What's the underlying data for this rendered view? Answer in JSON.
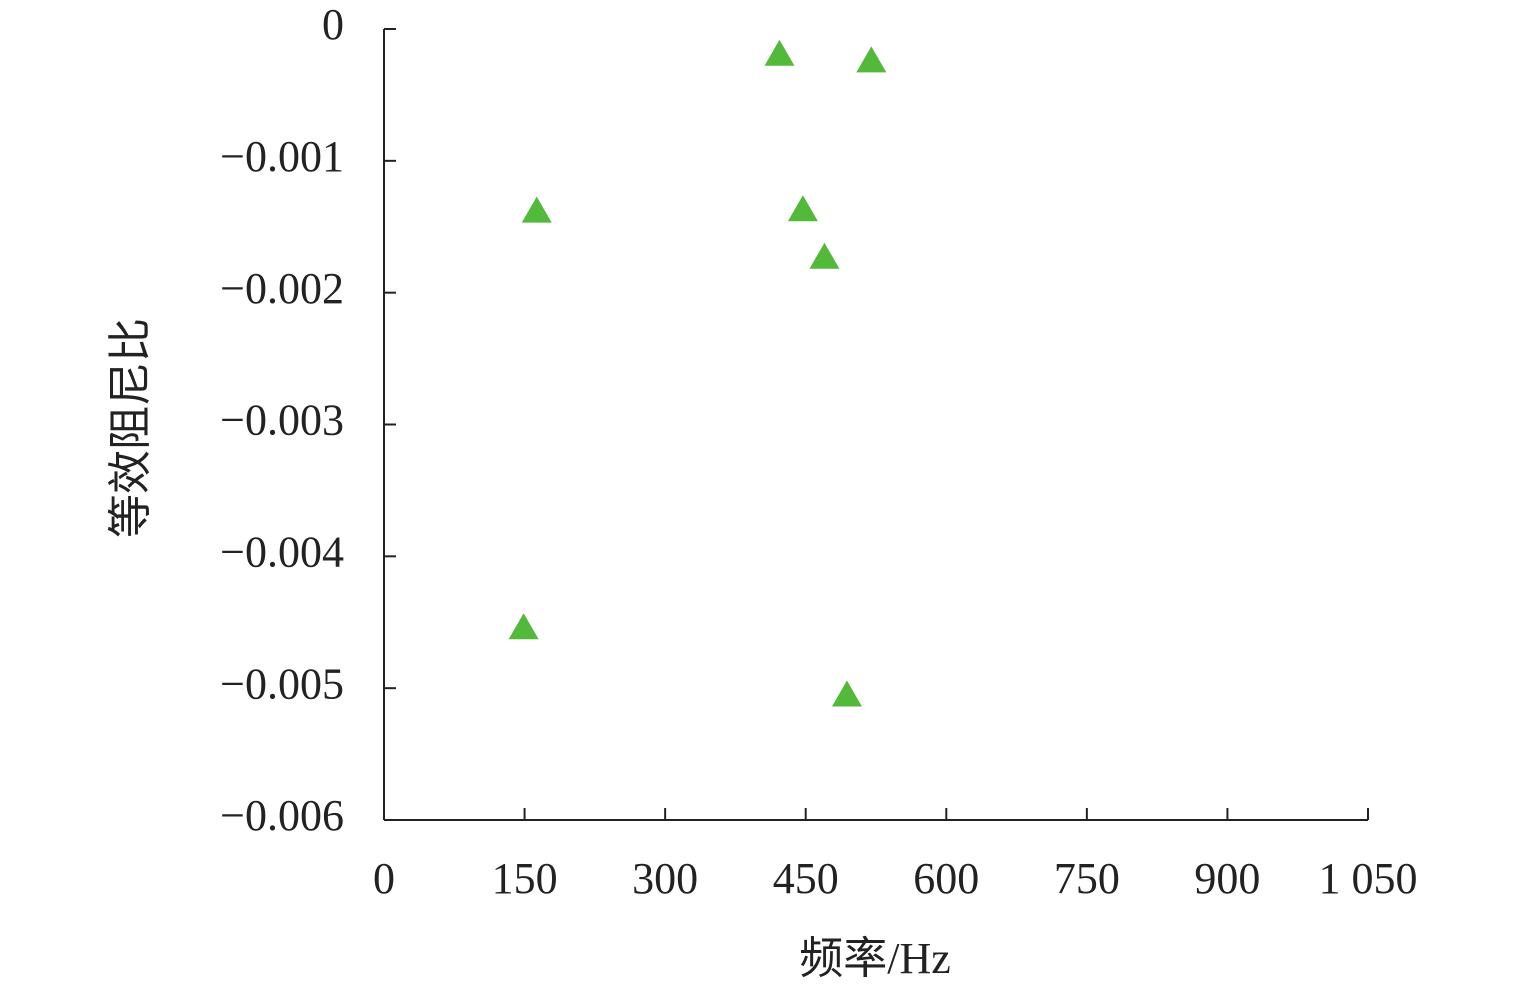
{
  "chart_data": {
    "type": "scatter",
    "xlabel": "频率/Hz",
    "ylabel": "等效阻尼比",
    "series": [
      {
        "color": "#52b93a",
        "x": [
          422,
          520,
          163,
          447,
          470,
          149,
          494
        ],
        "values": [
          -0.00019,
          -0.00024,
          -0.00138,
          -0.00137,
          -0.00173,
          -0.00454,
          -0.00505
        ]
      }
    ],
    "xlim": [
      0,
      1050
    ],
    "ylim": [
      -0.006,
      0
    ],
    "xticks": [
      0,
      150,
      300,
      450,
      600,
      750,
      900,
      {
        "value": 1050,
        "label": "1 050"
      }
    ],
    "yticks": [
      0,
      {
        "value": -0.001,
        "label": "−0.001"
      },
      {
        "value": -0.002,
        "label": "−0.002"
      },
      {
        "value": -0.003,
        "label": "−0.003"
      },
      {
        "value": -0.004,
        "label": "−0.004"
      },
      {
        "value": -0.005,
        "label": "−0.005"
      },
      {
        "value": -0.006,
        "label": "−0.006"
      }
    ],
    "grid": false
  }
}
